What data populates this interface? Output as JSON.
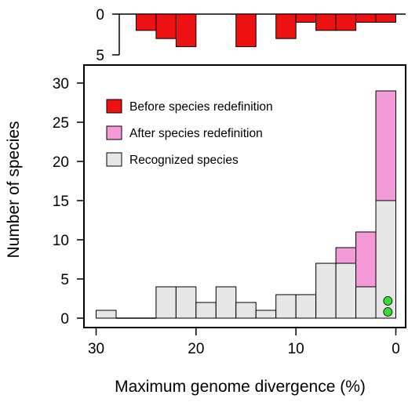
{
  "chart_data": {
    "type": "bar",
    "xlabel": "Maximum genome divergence  (%)",
    "ylabel": "Number of species",
    "x_axis": {
      "range": [
        31,
        -1.3
      ],
      "ticks": [
        30,
        20,
        10,
        0
      ],
      "reversed": true
    },
    "bins": [
      {
        "from": 28,
        "to": 30
      },
      {
        "from": 26,
        "to": 28
      },
      {
        "from": 24,
        "to": 26
      },
      {
        "from": 22,
        "to": 24
      },
      {
        "from": 20,
        "to": 22
      },
      {
        "from": 18,
        "to": 20
      },
      {
        "from": 16,
        "to": 18
      },
      {
        "from": 14,
        "to": 16
      },
      {
        "from": 12,
        "to": 14
      },
      {
        "from": 10,
        "to": 12
      },
      {
        "from": 8,
        "to": 10
      },
      {
        "from": 6,
        "to": 8
      },
      {
        "from": 4,
        "to": 6
      },
      {
        "from": 2,
        "to": 4
      },
      {
        "from": 0,
        "to": 2
      }
    ],
    "main_panel": {
      "y_range": [
        0,
        30
      ],
      "y_ticks": [
        0,
        5,
        10,
        15,
        20,
        25,
        30
      ],
      "series": [
        {
          "name": "Recognized species",
          "color": "#e6e6e6",
          "values": [
            1,
            0,
            0,
            4,
            4,
            2,
            4,
            2,
            1,
            3,
            3,
            7,
            7,
            4,
            15
          ]
        },
        {
          "name": "After species redefinition",
          "color": "#f49ad8",
          "values": [
            1,
            0,
            0,
            4,
            4,
            2,
            4,
            2,
            1,
            3,
            3,
            7,
            9,
            11,
            29
          ]
        }
      ],
      "points": [
        {
          "x": 0.8,
          "y": 2.2,
          "color": "#33dd33"
        },
        {
          "x": 0.8,
          "y": 0.8,
          "color": "#33dd33"
        }
      ]
    },
    "top_panel": {
      "y_range": [
        0,
        5
      ],
      "y_ticks": [
        0,
        5
      ],
      "inverted": true,
      "series": [
        {
          "name": "Before species redefinition",
          "color": "#ee1111",
          "values": [
            0,
            0,
            2,
            3,
            4,
            0,
            0,
            4,
            0,
            3,
            1,
            2,
            2,
            1,
            1
          ]
        }
      ]
    },
    "legend": {
      "placement": "top-left",
      "items": [
        {
          "label": "Before species redefinition",
          "color": "#ee1111"
        },
        {
          "label": "After species redefinition",
          "color": "#f49ad8"
        },
        {
          "label": "Recognized species",
          "color": "#e6e6e6"
        }
      ]
    },
    "grid": false
  }
}
